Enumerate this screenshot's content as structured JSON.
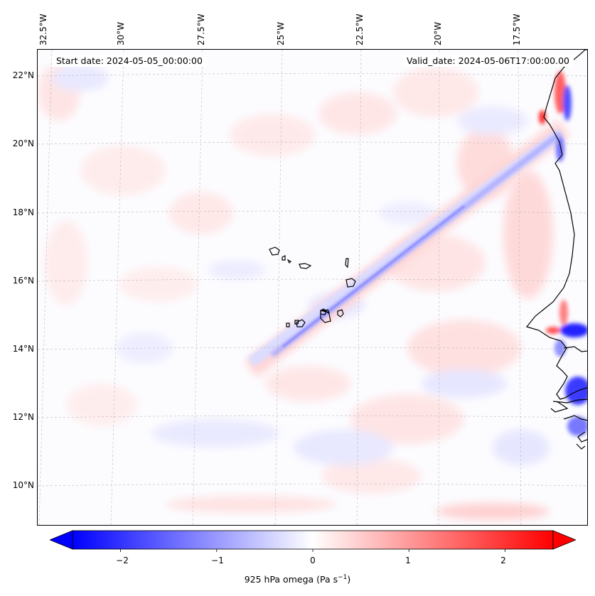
{
  "map": {
    "title_left": "Start date: 2024-05-05_00:00:00",
    "title_right": "Valid_date: 2024-05-06T17:00:00.00",
    "lon_labels": [
      "32.5°W",
      "30°W",
      "27.5°W",
      "25°W",
      "22.5°W",
      "20°W",
      "17.5°W"
    ],
    "lat_labels": [
      "22°N",
      "20°N",
      "18°N",
      "16°N",
      "14°N",
      "12°N",
      "10°N"
    ],
    "features": [
      "cape-verde-islands",
      "west-africa-coastline",
      "convergence-line"
    ],
    "colors": {
      "negative": "#0000ff",
      "neutral": "#ffffff",
      "positive": "#ff0000"
    }
  },
  "colorbar": {
    "ticks": [
      "−2",
      "−1",
      "0",
      "1",
      "2"
    ],
    "tick_values": [
      -2,
      -1,
      0,
      1,
      2
    ],
    "range": [
      -2.5,
      2.5
    ],
    "label": "925 hPa omega (Pa s",
    "label_exp": "−1",
    "label_close": ")"
  }
}
